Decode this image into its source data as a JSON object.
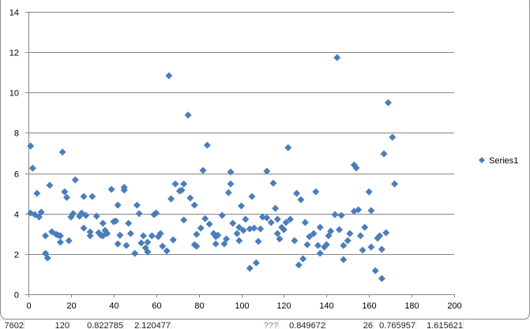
{
  "chart_data": {
    "type": "scatter",
    "title": "",
    "xlabel": "",
    "ylabel": "",
    "xlim": [
      0,
      200
    ],
    "ylim": [
      0,
      14
    ],
    "xticks": [
      "0",
      "20",
      "40",
      "60",
      "80",
      "100",
      "120",
      "140",
      "160",
      "180",
      "200"
    ],
    "yticks": [
      "0",
      "2",
      "4",
      "6",
      "8",
      "10",
      "12",
      "14"
    ],
    "grid": "horizontal major",
    "legend_position": "right",
    "marker": "diamond",
    "color": "#4a7ebb",
    "series": [
      {
        "name": "Series1",
        "x": [
          1,
          1,
          2,
          4,
          3,
          5,
          6,
          8,
          9,
          8,
          10,
          11,
          13,
          14,
          15,
          16,
          15,
          17,
          18,
          19,
          20,
          22,
          21,
          24,
          25,
          26,
          26,
          27,
          29,
          29,
          30,
          32,
          33,
          34,
          35,
          35,
          36,
          37,
          39,
          40,
          41,
          42,
          42,
          43,
          45,
          45,
          46,
          47,
          48,
          50,
          51,
          52,
          53,
          54,
          55,
          56,
          56,
          58,
          59,
          60,
          61,
          62,
          63,
          65,
          66,
          67,
          68,
          69,
          71,
          72,
          73,
          73,
          75,
          76,
          78,
          78,
          79,
          79,
          81,
          82,
          83,
          84,
          85,
          87,
          88,
          88,
          89,
          91,
          92,
          93,
          94,
          95,
          95,
          96,
          98,
          99,
          99,
          100,
          101,
          102,
          104,
          104,
          105,
          106,
          107,
          108,
          109,
          110,
          112,
          112,
          114,
          115,
          116,
          117,
          117,
          118,
          119,
          120,
          121,
          122,
          123,
          125,
          126,
          127,
          128,
          129,
          130,
          131,
          132,
          134,
          135,
          136,
          137,
          137,
          139,
          140,
          141,
          142,
          144,
          145,
          146,
          147,
          148,
          148,
          150,
          151,
          153,
          153,
          154,
          155,
          156,
          157,
          158,
          160,
          161,
          161,
          163,
          164,
          165,
          166,
          166,
          167,
          168,
          169,
          171,
          172
        ],
        "y": [
          4.03,
          7.35,
          6.25,
          5.0,
          3.95,
          3.83,
          4.07,
          2.03,
          1.8,
          2.9,
          5.4,
          3.1,
          2.97,
          2.93,
          2.58,
          7.05,
          2.9,
          5.08,
          4.8,
          2.66,
          3.83,
          5.67,
          4.0,
          3.87,
          4.03,
          3.28,
          4.85,
          3.91,
          3.09,
          2.9,
          4.85,
          3.87,
          3.05,
          2.93,
          3.52,
          2.9,
          3.17,
          3.01,
          5.2,
          3.6,
          3.63,
          2.5,
          4.42,
          2.93,
          5.16,
          5.3,
          2.42,
          3.52,
          3.01,
          2.03,
          4.42,
          4.0,
          2.54,
          2.9,
          2.3,
          2.1,
          2.58,
          2.9,
          3.95,
          4.03,
          2.86,
          3.01,
          2.38,
          2.15,
          10.83,
          4.73,
          2.7,
          5.47,
          5.12,
          5.16,
          5.47,
          3.68,
          8.88,
          4.77,
          4.42,
          2.46,
          2.97,
          2.38,
          3.28,
          6.14,
          3.75,
          7.39,
          3.48,
          3.01,
          2.5,
          2.86,
          2.93,
          3.91,
          2.5,
          2.74,
          5.04,
          6.06,
          5.47,
          3.52,
          3.01,
          2.66,
          3.32,
          4.38,
          3.17,
          3.72,
          1.29,
          3.24,
          4.85,
          3.28,
          1.56,
          2.62,
          3.24,
          3.83,
          6.1,
          3.79,
          3.56,
          5.51,
          4.26,
          3.01,
          3.72,
          2.74,
          3.32,
          3.2,
          3.56,
          7.27,
          3.72,
          2.66,
          5.0,
          1.45,
          4.69,
          1.76,
          3.56,
          2.46,
          2.86,
          3.01,
          5.08,
          2.42,
          2.03,
          3.32,
          2.34,
          2.46,
          2.9,
          3.13,
          3.95,
          11.73,
          3.2,
          3.91,
          1.72,
          2.42,
          2.66,
          3.01,
          4.11,
          6.41,
          6.26,
          4.19,
          2.9,
          2.19,
          3.32,
          5.08,
          4.15,
          2.34,
          1.17,
          2.78,
          2.9,
          2.23,
          0.78,
          6.96,
          3.05,
          9.5,
          7.78,
          5.47
        ]
      }
    ]
  },
  "sheet_row": [
    "7602",
    "120",
    "0.822785",
    "2.120477",
    "???",
    "0.849672",
    "26",
    "0.765957",
    "1.615621"
  ]
}
